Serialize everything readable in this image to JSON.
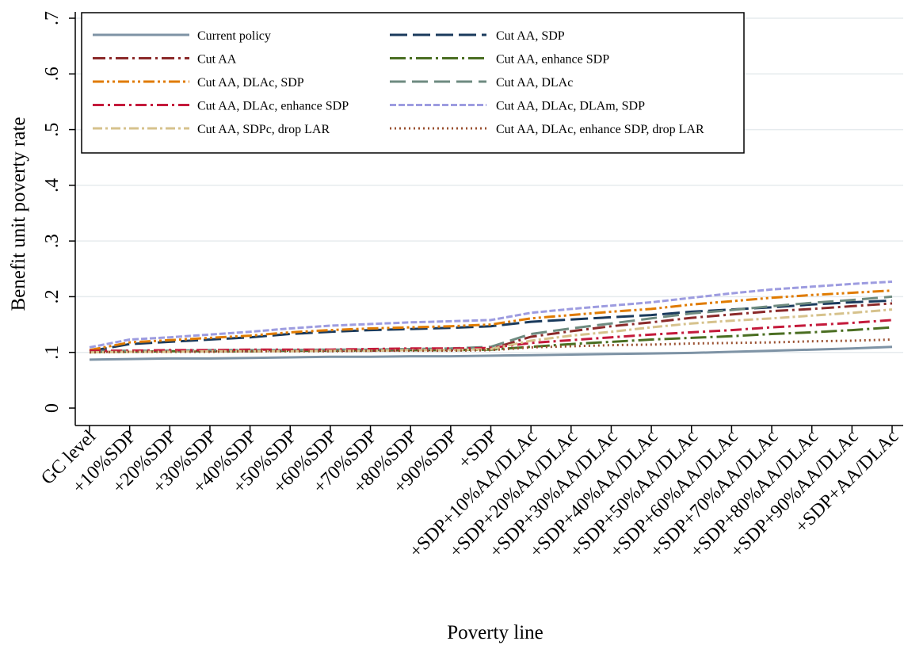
{
  "chart_data": {
    "type": "line",
    "xlabel": "Poverty line",
    "ylabel": "Benefit unit poverty rate",
    "ylim": [
      0,
      0.7
    ],
    "yticks": [
      0,
      0.1,
      0.2,
      0.3,
      0.4,
      0.5,
      0.6,
      0.7
    ],
    "ytick_labels": [
      "0",
      ".1",
      ".2",
      ".3",
      ".4",
      ".5",
      ".6",
      ".7"
    ],
    "grid": true,
    "legend_position": "top-left",
    "categories": [
      "GC level",
      "+10%SDP",
      "+20%SDP",
      "+30%SDP",
      "+40%SDP",
      "+50%SDP",
      "+60%SDP",
      "+70%SDP",
      "+80%SDP",
      "+90%SDP",
      "+SDP",
      "+SDP+10%AA/DLAc",
      "+SDP+20%AA/DLAc",
      "+SDP+30%AA/DLAc",
      "+SDP+40%AA/DLAc",
      "+SDP+50%AA/DLAc",
      "+SDP+60%AA/DLAc",
      "+SDP+70%AA/DLAc",
      "+SDP+80%AA/DLAc",
      "+SDP+90%AA/DLAc",
      "+SDP+AA/DLAc"
    ],
    "series": [
      {
        "name": "Current policy",
        "color": "#7e93a5",
        "dash": "",
        "width": 3,
        "values": [
          0.087,
          0.088,
          0.089,
          0.089,
          0.09,
          0.091,
          0.092,
          0.092,
          0.093,
          0.093,
          0.094,
          0.095,
          0.096,
          0.097,
          0.098,
          0.099,
          0.101,
          0.103,
          0.105,
          0.107,
          0.11
        ]
      },
      {
        "name": "Cut AA, SDP",
        "color": "#1a3a5c",
        "dash": "22 7",
        "width": 3,
        "values": [
          0.102,
          0.115,
          0.119,
          0.123,
          0.127,
          0.133,
          0.137,
          0.14,
          0.142,
          0.144,
          0.147,
          0.155,
          0.159,
          0.163,
          0.167,
          0.173,
          0.177,
          0.181,
          0.186,
          0.19,
          0.193
        ]
      },
      {
        "name": "Cut AA",
        "color": "#8b2a2a",
        "dash": "16 5 3 5",
        "width": 3,
        "values": [
          0.101,
          0.101,
          0.102,
          0.102,
          0.102,
          0.103,
          0.103,
          0.103,
          0.104,
          0.104,
          0.106,
          0.128,
          0.138,
          0.147,
          0.154,
          0.162,
          0.168,
          0.174,
          0.178,
          0.183,
          0.188
        ]
      },
      {
        "name": "Cut AA, enhance SDP",
        "color": "#4a6e22",
        "dash": "20 5 3 5",
        "width": 3,
        "values": [
          0.101,
          0.101,
          0.102,
          0.102,
          0.102,
          0.103,
          0.103,
          0.104,
          0.104,
          0.104,
          0.105,
          0.11,
          0.115,
          0.119,
          0.123,
          0.126,
          0.129,
          0.133,
          0.136,
          0.14,
          0.145
        ]
      },
      {
        "name": "Cut AA, DLAc, SDP",
        "color": "#e07b00",
        "dash": "14 4 3 4 3 4",
        "width": 3,
        "values": [
          0.104,
          0.118,
          0.122,
          0.126,
          0.13,
          0.136,
          0.14,
          0.143,
          0.145,
          0.147,
          0.15,
          0.161,
          0.167,
          0.173,
          0.178,
          0.186,
          0.192,
          0.198,
          0.203,
          0.207,
          0.211
        ]
      },
      {
        "name": "Cut AA, DLAc",
        "color": "#6e8b80",
        "dash": "20 8",
        "width": 3,
        "values": [
          0.102,
          0.103,
          0.103,
          0.104,
          0.104,
          0.104,
          0.105,
          0.105,
          0.106,
          0.107,
          0.11,
          0.133,
          0.143,
          0.152,
          0.161,
          0.17,
          0.176,
          0.183,
          0.189,
          0.194,
          0.2
        ]
      },
      {
        "name": "Cut AA, DLAc, enhance SDP",
        "color": "#c41a3b",
        "dash": "14 5 3 5",
        "width": 3,
        "values": [
          0.103,
          0.103,
          0.104,
          0.104,
          0.105,
          0.105,
          0.105,
          0.106,
          0.107,
          0.107,
          0.108,
          0.117,
          0.122,
          0.127,
          0.132,
          0.136,
          0.14,
          0.145,
          0.149,
          0.153,
          0.158
        ]
      },
      {
        "name": "Cut AA, DLAc, DLAm, SDP",
        "color": "#9d9ce0",
        "dash": "8 3",
        "width": 3,
        "values": [
          0.109,
          0.123,
          0.127,
          0.132,
          0.137,
          0.143,
          0.148,
          0.151,
          0.154,
          0.156,
          0.158,
          0.171,
          0.178,
          0.184,
          0.19,
          0.198,
          0.206,
          0.213,
          0.218,
          0.223,
          0.227
        ]
      },
      {
        "name": "Cut AA, SDPc, drop LAR",
        "color": "#d6c28c",
        "dash": "12 4 3 4",
        "width": 3,
        "values": [
          0.1,
          0.101,
          0.101,
          0.102,
          0.102,
          0.102,
          0.103,
          0.103,
          0.104,
          0.104,
          0.106,
          0.121,
          0.13,
          0.137,
          0.145,
          0.152,
          0.157,
          0.161,
          0.166,
          0.171,
          0.177
        ]
      },
      {
        "name": "Cut AA, DLAc,  enhance SDP, drop LAR",
        "color": "#9a5030",
        "dash": "2 4",
        "width": 3,
        "values": [
          0.1,
          0.101,
          0.101,
          0.101,
          0.102,
          0.102,
          0.102,
          0.103,
          0.103,
          0.103,
          0.104,
          0.109,
          0.111,
          0.113,
          0.114,
          0.116,
          0.117,
          0.118,
          0.12,
          0.121,
          0.123
        ]
      }
    ]
  }
}
